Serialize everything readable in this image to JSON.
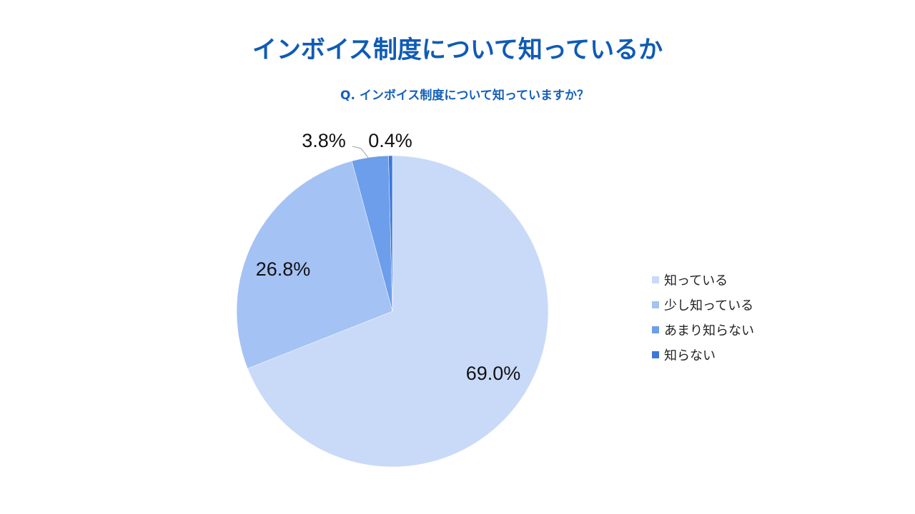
{
  "title": "インボイス制度について知っているか",
  "chart_data": {
    "type": "pie",
    "title": "Q. インボイス制度について知っていますか？",
    "categories": [
      "知っている",
      "少し知っている",
      "あまり知らない",
      "知らない"
    ],
    "values": [
      69.0,
      26.8,
      3.8,
      0.4
    ],
    "labels": [
      "69.0%",
      "26.8%",
      "3.8%",
      "0.4%"
    ],
    "unit": "%",
    "colors": [
      "#c9daf8",
      "#a4c2f4",
      "#6d9eeb",
      "#3c78d8"
    ],
    "start_angle": "12 o'clock",
    "direction": "clockwise",
    "legend_position": "right"
  }
}
